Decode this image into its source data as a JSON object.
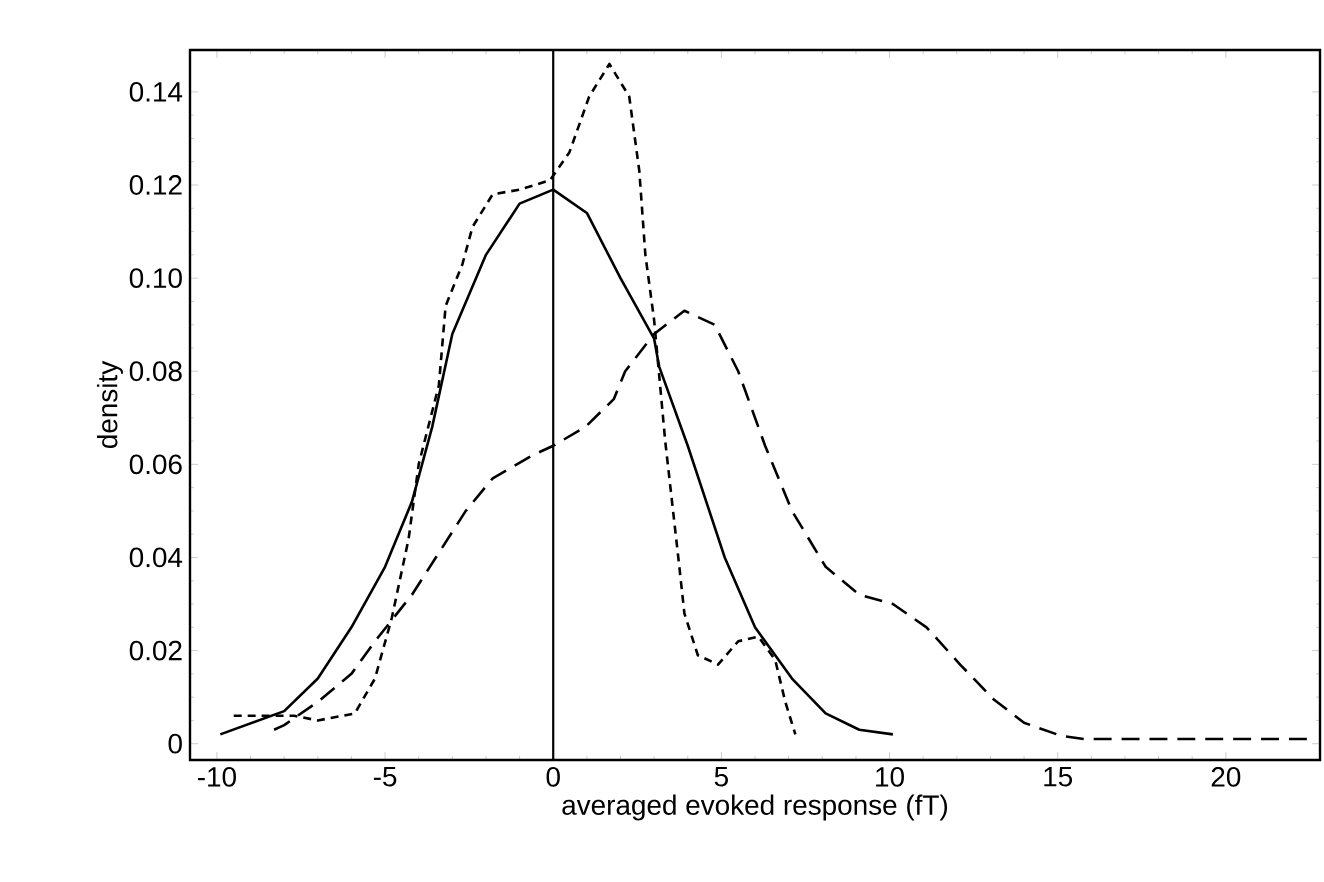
{
  "chart_data": {
    "type": "line",
    "xlabel": "averaged evoked response (fT)",
    "ylabel": "density",
    "xlim": [
      -10.8,
      22.8
    ],
    "ylim": [
      -0.0035,
      0.149
    ],
    "xticks": [
      -10,
      -5,
      0,
      5,
      10,
      15,
      20
    ],
    "yticks": [
      {
        "value": 0,
        "label": "0"
      },
      {
        "value": 0.02,
        "label": "0.02"
      },
      {
        "value": 0.04,
        "label": "0.04"
      },
      {
        "value": 0.06,
        "label": "0.06"
      },
      {
        "value": 0.08,
        "label": "0.08"
      },
      {
        "value": 0.1,
        "label": "0.10"
      },
      {
        "value": 0.12,
        "label": "0.12"
      },
      {
        "value": 0.14,
        "label": "0.14"
      }
    ],
    "grid": false,
    "marker": "none",
    "ref_lines": [
      {
        "axis": "x",
        "value": 0,
        "color": "#000000",
        "line_style": "solid"
      }
    ],
    "series": [
      {
        "color": "#000000",
        "line_style": "solid",
        "x": [
          -9.9,
          -8,
          -7,
          -6,
          -5,
          -4.2,
          -3.6,
          -3,
          -2,
          -1,
          0,
          1,
          2,
          3,
          3.15,
          4,
          5.1,
          6,
          7.1,
          8.1,
          9.1,
          10.1
        ],
        "values": [
          0.002,
          0.007,
          0.014,
          0.025,
          0.038,
          0.052,
          0.068,
          0.088,
          0.105,
          0.116,
          0.119,
          0.114,
          0.1,
          0.087,
          0.081,
          0.064,
          0.04,
          0.025,
          0.014,
          0.0065,
          0.003,
          0.002
        ]
      },
      {
        "color": "#000000",
        "line_style": "dotted",
        "x": [
          -9.5,
          -7.7,
          -7,
          -5.9,
          -5.3,
          -4.8,
          -4.3,
          -4,
          -3.4,
          -3.2,
          -2.7,
          -2.4,
          -1.8,
          -1,
          -0.1,
          0.48,
          1.07,
          1.67,
          2.26,
          2.56,
          2.74,
          3,
          3.33,
          3.75,
          3.9,
          4.3,
          4.9,
          5.5,
          6.1,
          6.6,
          6.9,
          7.2
        ],
        "values": [
          0.006,
          0.006,
          0.005,
          0.0065,
          0.014,
          0.027,
          0.044,
          0.06,
          0.077,
          0.094,
          0.103,
          0.111,
          0.118,
          0.119,
          0.121,
          0.127,
          0.139,
          0.146,
          0.139,
          0.123,
          0.105,
          0.091,
          0.065,
          0.038,
          0.028,
          0.019,
          0.017,
          0.022,
          0.023,
          0.018,
          0.009,
          0.002
        ]
      },
      {
        "color": "#000000",
        "line_style": "dashed",
        "x": [
          -8.3,
          -8,
          -7,
          -6,
          -5.3,
          -4.2,
          -3.4,
          -2.6,
          -1.8,
          -0.6,
          0,
          0.95,
          1.8,
          2.14,
          3,
          3.9,
          4.8,
          5.5,
          6.3,
          7.1,
          8.1,
          9.1,
          10.1,
          11.1,
          12.1,
          13.1,
          14,
          15.1,
          15.8,
          22.5
        ],
        "values": [
          0.003,
          0.004,
          0.009,
          0.015,
          0.022,
          0.032,
          0.041,
          0.05,
          0.057,
          0.062,
          0.064,
          0.068,
          0.074,
          0.08,
          0.088,
          0.093,
          0.09,
          0.08,
          0.064,
          0.05,
          0.038,
          0.032,
          0.03,
          0.025,
          0.017,
          0.0095,
          0.0045,
          0.0017,
          0.001,
          0.001
        ]
      }
    ]
  }
}
